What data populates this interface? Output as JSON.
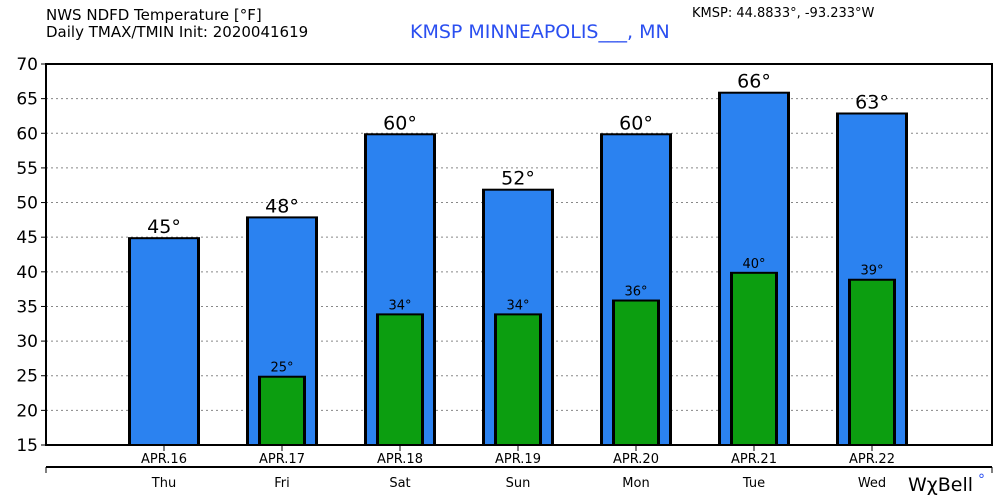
{
  "header": {
    "title_line1": "NWS NDFD Temperature [°F]",
    "title_line2": "Daily TMAX/TMIN Init: 2020041619",
    "location": "KMSP MINNEAPOLIS___, MN",
    "coords": "KMSP: 44.8833°, -93.233°W",
    "logo": "WχBell"
  },
  "colors": {
    "tmax": "#2b82f0",
    "tmin": "#0c9e10",
    "location_text": "#2b4ff0"
  },
  "chart_data": {
    "type": "bar",
    "title": "NWS NDFD Temperature [°F]",
    "subtitle": "Daily TMAX/TMIN Init: 2020041619",
    "categories": [
      "APR.16",
      "APR.17",
      "APR.18",
      "APR.19",
      "APR.20",
      "APR.21",
      "APR.22"
    ],
    "days": [
      "Thu",
      "Fri",
      "Sat",
      "Sun",
      "Mon",
      "Tue",
      "Wed"
    ],
    "series": [
      {
        "key": "tmax",
        "values": [
          45,
          48,
          60,
          52,
          60,
          66,
          63
        ],
        "labels": [
          "45°",
          "48°",
          "60°",
          "52°",
          "60°",
          "66°",
          "63°"
        ]
      },
      {
        "key": "tmin",
        "values": [
          null,
          25,
          34,
          34,
          36,
          40,
          39
        ],
        "labels": [
          "",
          "25°",
          "34°",
          "34°",
          "36°",
          "40°",
          "39°"
        ]
      }
    ],
    "ylim": [
      15,
      70
    ],
    "yticks": [
      15,
      20,
      25,
      30,
      35,
      40,
      45,
      50,
      55,
      60,
      65,
      70
    ],
    "grid": true
  }
}
